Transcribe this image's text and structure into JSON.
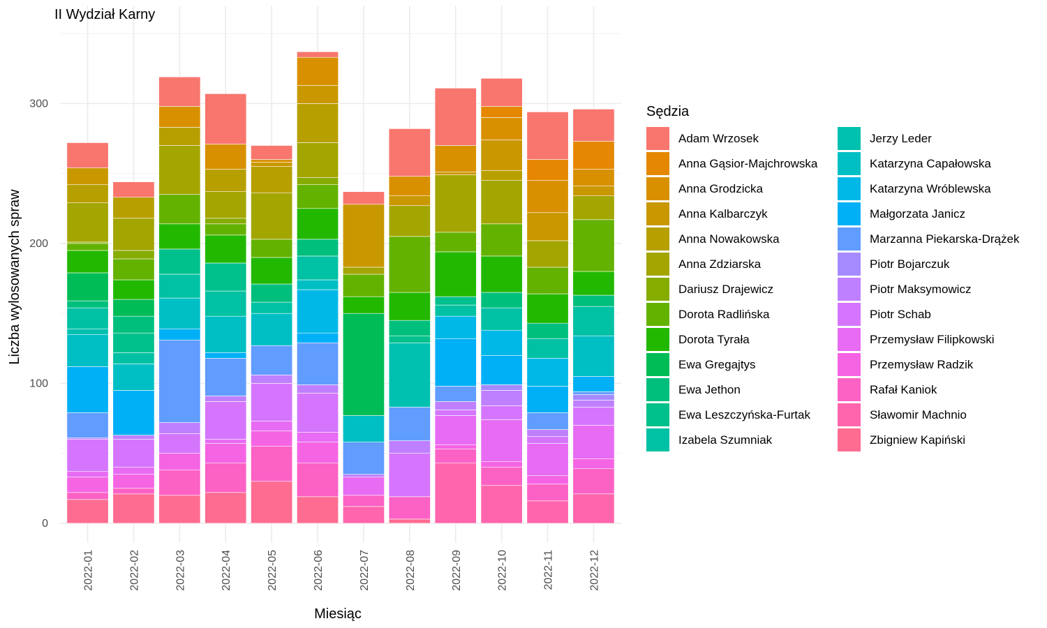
{
  "chart_data": {
    "type": "bar",
    "stacked": true,
    "title": "II Wydział Karny",
    "xlabel": "Miesiąc",
    "ylabel": "Liczba wylosowanych spraw",
    "ylim": [
      -14,
      370
    ],
    "yticks": [
      0,
      100,
      200,
      300
    ],
    "grid": true,
    "legend_position": "right",
    "legend_title": "Sędzia",
    "categories": [
      "2022-01",
      "2022-02",
      "2022-03",
      "2022-04",
      "2022-05",
      "2022-06",
      "2022-07",
      "2022-08",
      "2022-09",
      "2022-10",
      "2022-11",
      "2022-12"
    ],
    "series": [
      {
        "name": "Zbigniew Kapiński",
        "color": "#FF6C91",
        "values": [
          17,
          21,
          20,
          22,
          30,
          19,
          0,
          3,
          0,
          0,
          0,
          0
        ]
      },
      {
        "name": "Sławomir Machnio",
        "color": "#FF65AC",
        "values": [
          0,
          0,
          0,
          0,
          0,
          0,
          12,
          0,
          43,
          27,
          16,
          21
        ]
      },
      {
        "name": "Rafał Kaniok",
        "color": "#FC61C4",
        "values": [
          5,
          4,
          18,
          21,
          25,
          24,
          8,
          16,
          10,
          13,
          12,
          18
        ]
      },
      {
        "name": "Przemysław Radzik",
        "color": "#F564E3",
        "values": [
          11,
          10,
          12,
          14,
          11,
          15,
          0,
          0,
          3,
          4,
          6,
          7
        ]
      },
      {
        "name": "Przemysław Filipkowski",
        "color": "#E76BF3",
        "values": [
          4,
          5,
          0,
          3,
          7,
          7,
          13,
          0,
          21,
          30,
          23,
          24
        ]
      },
      {
        "name": "Piotr Schab",
        "color": "#D575FE",
        "values": [
          23,
          20,
          14,
          27,
          27,
          28,
          0,
          31,
          4,
          10,
          5,
          13
        ]
      },
      {
        "name": "Piotr Maksymowicz",
        "color": "#BF80FF",
        "values": [
          1,
          3,
          8,
          4,
          6,
          6,
          2,
          9,
          6,
          11,
          5,
          5
        ]
      },
      {
        "name": "Piotr Bojarczuk",
        "color": "#A58AFF",
        "values": [
          0,
          0,
          0,
          0,
          0,
          0,
          0,
          0,
          0,
          4,
          0,
          4
        ]
      },
      {
        "name": "Marzanna Piekarska-Drążek",
        "color": "#619CFF",
        "values": [
          18,
          0,
          59,
          27,
          21,
          30,
          23,
          24,
          11,
          0,
          12,
          2
        ]
      },
      {
        "name": "Małgorzata Janicz",
        "color": "#00B0F6",
        "values": [
          33,
          32,
          8,
          4,
          0,
          7,
          0,
          0,
          34,
          21,
          19,
          11
        ]
      },
      {
        "name": "Katarzyna Wróblewska",
        "color": "#00B8E7",
        "values": [
          0,
          0,
          0,
          0,
          0,
          31,
          0,
          0,
          16,
          18,
          20,
          0
        ]
      },
      {
        "name": "Katarzyna Capałowska",
        "color": "#00BFC4",
        "values": [
          23,
          19,
          22,
          26,
          23,
          7,
          19,
          0,
          0,
          0,
          0,
          29
        ]
      },
      {
        "name": "Jerzy Leder",
        "color": "#00C0B0",
        "values": [
          4,
          0,
          0,
          0,
          0,
          0,
          0,
          46,
          0,
          0,
          0,
          0
        ]
      },
      {
        "name": "Izabela Szumniak",
        "color": "#00C1A3",
        "values": [
          15,
          8,
          17,
          18,
          8,
          17,
          0,
          0,
          8,
          16,
          14,
          21
        ]
      },
      {
        "name": "Ewa Leszczyńska-Furtak",
        "color": "#00C08B",
        "values": [
          0,
          14,
          18,
          20,
          0,
          0,
          0,
          5,
          6,
          0,
          0,
          0
        ]
      },
      {
        "name": "Ewa Jethon",
        "color": "#00BF7D",
        "values": [
          5,
          12,
          0,
          0,
          13,
          12,
          0,
          11,
          0,
          11,
          11,
          8
        ]
      },
      {
        "name": "Ewa Gregajtys",
        "color": "#00BC56",
        "values": [
          20,
          12,
          0,
          0,
          0,
          0,
          73,
          0,
          0,
          0,
          0,
          0
        ]
      },
      {
        "name": "Dorota Tyrała",
        "color": "#23B800",
        "values": [
          16,
          14,
          18,
          20,
          19,
          22,
          12,
          20,
          32,
          26,
          21,
          17
        ]
      },
      {
        "name": "Dorota Radlińska",
        "color": "#64B200",
        "values": [
          5,
          15,
          21,
          8,
          13,
          17,
          16,
          40,
          14,
          23,
          19,
          37
        ]
      },
      {
        "name": "Dariusz Drajewicz",
        "color": "#86AC00",
        "values": [
          1,
          6,
          0,
          4,
          0,
          5,
          0,
          0,
          0,
          0,
          0,
          0
        ]
      },
      {
        "name": "Anna Zdziarska",
        "color": "#A3A500",
        "values": [
          28,
          23,
          35,
          19,
          33,
          25,
          5,
          22,
          41,
          31,
          19,
          17
        ]
      },
      {
        "name": "Anna Nowakowska",
        "color": "#B79F00",
        "values": [
          13,
          15,
          13,
          16,
          19,
          28,
          0,
          0,
          0,
          7,
          0,
          0
        ]
      },
      {
        "name": "Anna Kalbarczyk",
        "color": "#C99800",
        "values": [
          12,
          0,
          0,
          0,
          3,
          13,
          45,
          7,
          2,
          22,
          20,
          7
        ]
      },
      {
        "name": "Anna Grodzicka",
        "color": "#D89000",
        "values": [
          0,
          0,
          15,
          18,
          2,
          20,
          0,
          14,
          19,
          16,
          23,
          12
        ]
      },
      {
        "name": "Anna Gąsior-Majchrowska",
        "color": "#E58700",
        "values": [
          0,
          0,
          0,
          0,
          0,
          0,
          0,
          0,
          0,
          8,
          15,
          20
        ]
      },
      {
        "name": "Adam Wrzosek",
        "color": "#F8766D",
        "values": [
          18,
          11,
          21,
          36,
          10,
          4,
          9,
          34,
          41,
          20,
          34,
          23
        ]
      }
    ]
  }
}
